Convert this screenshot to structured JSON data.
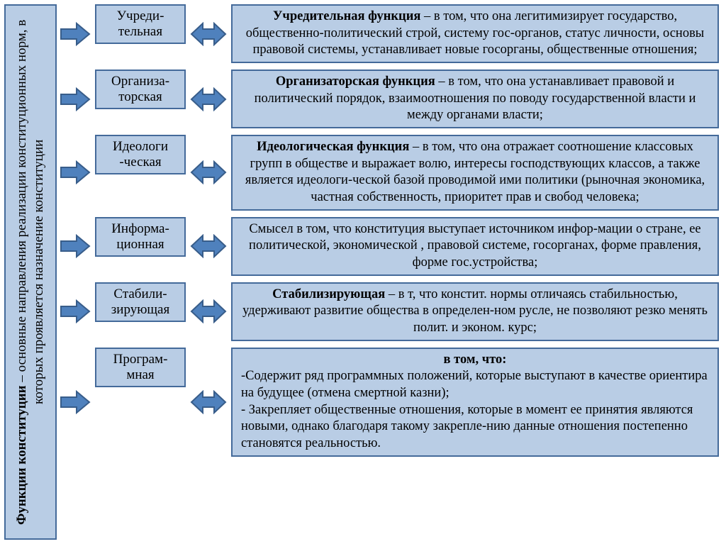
{
  "colors": {
    "box_fill": "#b9cde5",
    "box_border": "#446a9a",
    "arrow_fill": "#4f81bd",
    "arrow_stroke": "#385d8a",
    "text": "#000000",
    "background": "#ffffff"
  },
  "typography": {
    "font_family": "Times New Roman",
    "label_fontsize": 19,
    "desc_fontsize": 18.5,
    "sidebar_fontsize": 19
  },
  "sidebar": {
    "title_bold": "Функции конституции",
    "title_rest": " – основные направления реализации конституционных норм, в которых проявляется назначение конституции"
  },
  "rows": [
    {
      "label": "Учреди-\nтельная",
      "desc_bold": "Учредительная функция",
      "desc_rest": " – в том, что она легитимизирует государство, общественно-политический строй, систему гос-органов, статус личности, основы правовой  системы, устанавливает новые госорганы, общественные отношения;"
    },
    {
      "label": "Организа-\nторская",
      "desc_bold": "Организаторская функция",
      "desc_rest": " – в том, что  она устанавливает правовой и политический порядок, взаимоотношения по поводу государственной власти и между органами власти;"
    },
    {
      "label": "Идеологи\n-ческая",
      "desc_bold": "Идеологическая функция",
      "desc_rest": " – в том, что она отражает соотношение классовых групп в обществе и выражает волю, интересы господствующих классов, а также является идеологи-ческой базой проводимой ими политики (рыночная экономика, частная собственность, приоритет прав и свобод человека;"
    },
    {
      "label": "Информа-\nционная",
      "desc_bold": "",
      "desc_rest": "Смысел в том, что конституция выступает источником инфор-мации о стране, ее политической, экономической , правовой системе, госорганах, форме правления, форме гос.устройства;"
    },
    {
      "label": "Стабили-\nзирующая",
      "desc_bold": "Стабилизирующая",
      "desc_rest": " – в т, что констит. нормы отличаясь стабильностью, удерживают развитие общества в определен-ном русле, не позволяют резко менять полит. и эконом. курс;"
    },
    {
      "label": "Програм-\nмная",
      "desc_bold": "в том, что:",
      "desc_rest_lines": [
        "-Содержит ряд программных положений, которые выступают в качестве ориентира на будущее (отмена смертной казни);",
        "- Закрепляет общественные отношения, которые в момент ее принятия являются новыми, однако благодаря такому закрепле-нию данные отношения постепенно становятся реальностью."
      ]
    }
  ]
}
